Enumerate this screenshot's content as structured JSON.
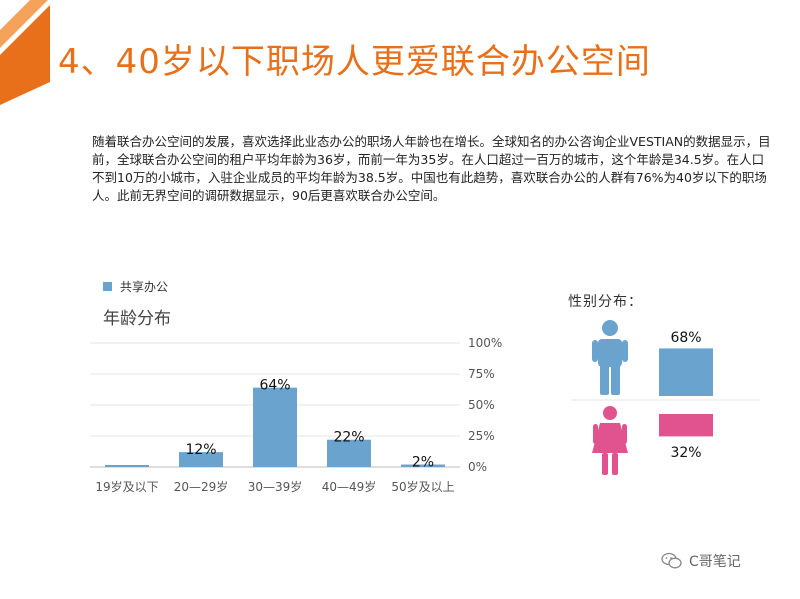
{
  "slide": {
    "title": "4、40岁以下职场人更爱联合办公空间",
    "paragraph": "随着联合办公空间的发展，喜欢选择此业态办公的职场人年龄也在增长。全球知名的办公咨询企业VESTIAN的数据显示，目前，全球联合办公空间的租户平均年龄为36岁，而前一年为35岁。在人口超过一百万的城市，这个年龄是34.5岁。在人口不到10万的小城市，入驻企业成员的平均年龄为38.5岁。中国也有此趋势，喜欢联合办公的人群有76%为40岁以下的职场人。此前无界空间的调研数据显示，90后更喜欢联合办公空间。",
    "accent_color": "#e8701a"
  },
  "watermark": {
    "text": "C哥笔记",
    "icon": "wechat-icon"
  },
  "chart_data": [
    {
      "type": "bar",
      "title": "年龄分布",
      "legend": [
        "共享办公"
      ],
      "legend_position": "top-left",
      "categories": [
        "19岁及以下",
        "20—29岁",
        "30—39岁",
        "40—49岁",
        "50岁及以上"
      ],
      "series": [
        {
          "name": "共享办公",
          "values": [
            0,
            12,
            64,
            22,
            2
          ],
          "color": "#6ba3cf"
        }
      ],
      "data_labels": [
        "",
        "12%",
        "64%",
        "22%",
        "2%"
      ],
      "ylim": [
        0,
        100
      ],
      "yticks": [
        "0%",
        "25%",
        "50%",
        "75%",
        "100%"
      ],
      "y_axis_position": "right",
      "grid": true
    },
    {
      "type": "bar",
      "title": "性别分布：",
      "categories": [
        "male",
        "female"
      ],
      "icons": [
        "male-person-icon",
        "female-person-icon"
      ],
      "values": [
        68,
        32
      ],
      "data_labels": [
        "68%",
        "32%"
      ],
      "colors": [
        "#6ba3cf",
        "#e0538f"
      ]
    }
  ]
}
